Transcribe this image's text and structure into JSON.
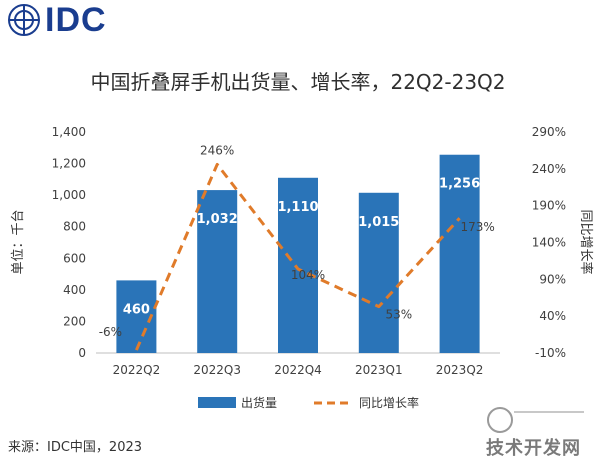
{
  "brand": {
    "logo": "IDC"
  },
  "chart_data": {
    "type": "bar",
    "title": "中国折叠屏手机出货量、增长率，22Q2-23Q2",
    "categories": [
      "2022Q2",
      "2022Q3",
      "2022Q4",
      "2023Q1",
      "2023Q2"
    ],
    "series": [
      {
        "name": "出货量",
        "type": "bar",
        "axis": "left",
        "values": [
          460,
          1032,
          1110,
          1015,
          1256
        ],
        "labels": [
          "460",
          "1,032",
          "1,110",
          "1,015",
          "1,256"
        ]
      },
      {
        "name": "同比增长率",
        "type": "line",
        "axis": "right",
        "values": [
          -6,
          246,
          104,
          53,
          173
        ],
        "labels": [
          "-6%",
          "246%",
          "104%",
          "53%",
          "173%"
        ]
      }
    ],
    "ylabel": "单位：千台",
    "y2label": "同比增长率",
    "ylim": [
      0,
      1400
    ],
    "y2lim": [
      -10,
      290
    ],
    "yticks": [
      "0",
      "200",
      "400",
      "600",
      "800",
      "1,000",
      "1,200",
      "1,400"
    ],
    "y2ticks": [
      "-10%",
      "40%",
      "90%",
      "140%",
      "190%",
      "240%",
      "290%"
    ],
    "legend": "bottom",
    "grid": false,
    "colors": {
      "bar": "#2a74b8",
      "line": "#e07b2a"
    }
  },
  "source": "来源：IDC中国，2023",
  "watermark": "技术开发网"
}
